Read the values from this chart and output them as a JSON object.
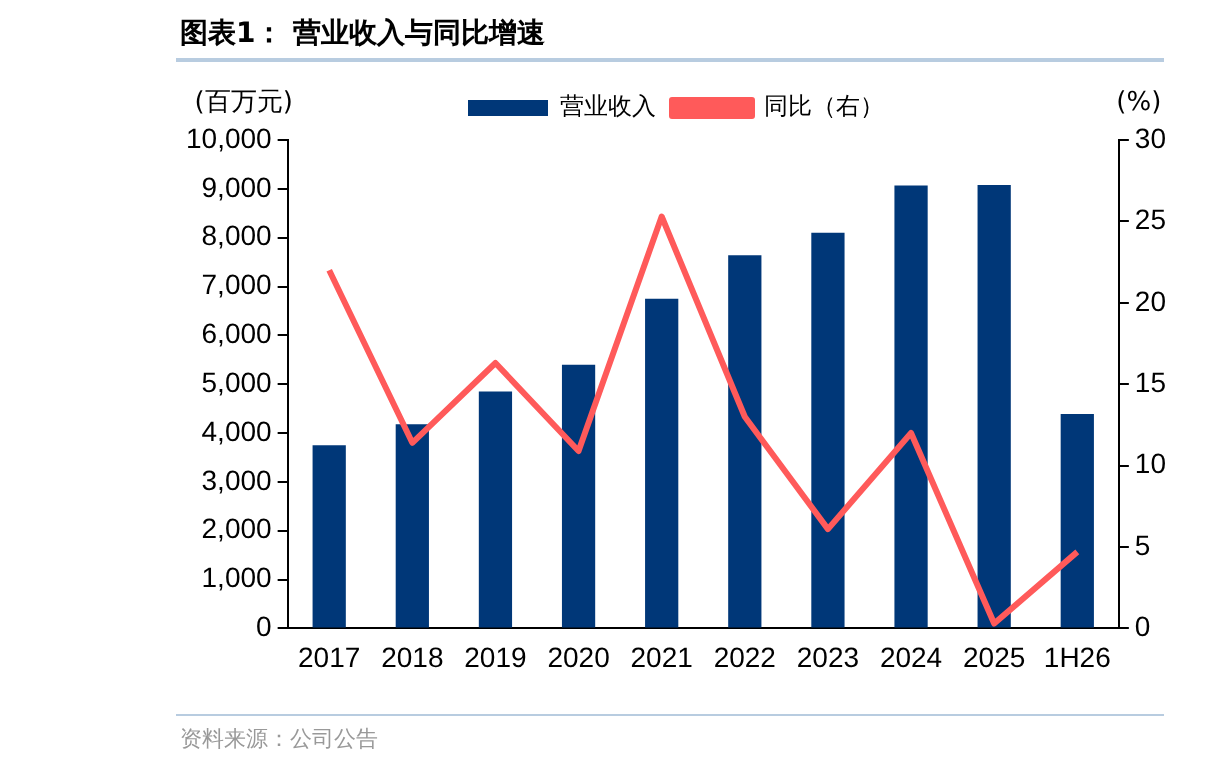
{
  "chart_data": {
    "type": "bar",
    "title": "图表1： 营业收入与同比增速",
    "ylabel": "(百万元)",
    "y2label": "(%)",
    "categories": [
      "2017",
      "2018",
      "2019",
      "2020",
      "2021",
      "2022",
      "2023",
      "2024",
      "2025",
      "1H26"
    ],
    "series": [
      {
        "name": "营业收入",
        "color": "#003778",
        "values": [
          3750,
          4180,
          4850,
          5400,
          6750,
          7640,
          8100,
          9070,
          9080,
          4390
        ]
      },
      {
        "name": "同比（右）",
        "type": "line",
        "axis": "y2",
        "color": "#ff5a5a",
        "values": [
          22.0,
          11.4,
          16.3,
          10.9,
          25.3,
          13.0,
          6.1,
          12.0,
          0.3,
          4.7
        ]
      }
    ],
    "ylim": [
      0,
      10000
    ],
    "yticks": [
      {
        "value": 0,
        "label": "0"
      },
      {
        "value": 1000,
        "label": "1,000"
      },
      {
        "value": 2000,
        "label": "2,000"
      },
      {
        "value": 3000,
        "label": "3,000"
      },
      {
        "value": 4000,
        "label": "4,000"
      },
      {
        "value": 5000,
        "label": "5,000"
      },
      {
        "value": 6000,
        "label": "6,000"
      },
      {
        "value": 7000,
        "label": "7,000"
      },
      {
        "value": 8000,
        "label": "8,000"
      },
      {
        "value": 9000,
        "label": "9,000"
      },
      {
        "value": 10000,
        "label": "10,000"
      }
    ],
    "y2lim": [
      0,
      30
    ],
    "y2ticks": [
      0,
      5,
      10,
      15,
      20,
      25,
      30
    ],
    "legend": "top",
    "grid": false,
    "marker": "none",
    "line_style": "solid",
    "annotations": [
      "资料来源：公司公告"
    ]
  }
}
